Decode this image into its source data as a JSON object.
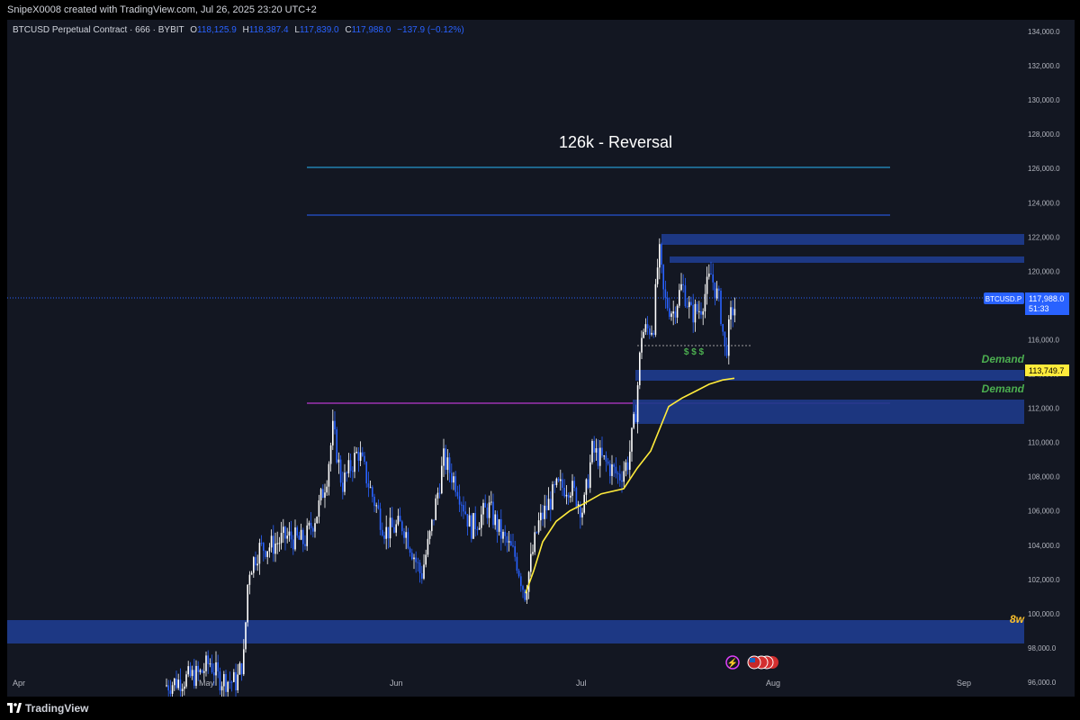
{
  "header": {
    "attribution": "SnipeX0008 created with TradingView.com, Jul 26, 2025 23:20 UTC+2"
  },
  "symbol": {
    "name": "BTCUSD Perpetual Contract · 666 · BYBIT",
    "open_label": "O",
    "open": "118,125.9",
    "high_label": "H",
    "high": "118,387.4",
    "low_label": "L",
    "low": "117,839.0",
    "close_label": "C",
    "close": "117,988.0",
    "change": "−137.9 (−0.12%)"
  },
  "annotations": {
    "title": "126k - Reversal",
    "demand_1": "Demand",
    "demand_2": "Demand",
    "liquidity": "$ $ $",
    "weekly": "8w"
  },
  "price_axis": {
    "ticks": [
      "134,000.0",
      "132,000.0",
      "130,000.0",
      "128,000.0",
      "126,000.0",
      "124,000.0",
      "122,000.0",
      "120,000.0",
      "118,000.0",
      "116,000.0",
      "114,000.0",
      "112,000.0",
      "110,000.0",
      "108,000.0",
      "106,000.0",
      "104,000.0",
      "102,000.0",
      "100,000.0",
      "98,000.0",
      "96,000.0"
    ],
    "tick_values": [
      134000,
      132000,
      130000,
      128000,
      126000,
      124000,
      122000,
      120000,
      118000,
      116000,
      114000,
      112000,
      110000,
      108000,
      106000,
      104000,
      102000,
      100000,
      98000,
      96000
    ],
    "last_price_ticker": "BTCUSD.P",
    "last_price": "117,988.0",
    "countdown": "51:33",
    "ma_value_label": "113,749.7"
  },
  "time_axis": {
    "labels": [
      "Apr",
      "May",
      "Jun",
      "Jul",
      "Aug",
      "Sep"
    ]
  },
  "footer": {
    "brand": "TradingView"
  },
  "colors": {
    "background": "#131722",
    "up": "#ffffff",
    "down": "#2962ff",
    "ma": "#ffeb3b",
    "zone": "#1e3a8a",
    "demand_text": "#4caf50",
    "weekly_text": "#fbc02d",
    "accent": "#2962ff",
    "magenta": "#e040fb"
  },
  "chart_data": {
    "type": "candlestick",
    "y_range": [
      95000,
      135000
    ],
    "levels": [
      {
        "name": "126k target",
        "price": 126000,
        "color": "#29b6f6"
      },
      {
        "name": "range high",
        "price": 123100,
        "color": "#2962ff"
      },
      {
        "name": "breakout level",
        "price": 111700,
        "color": "#e040fb"
      },
      {
        "name": "liquidity low",
        "price": 115100,
        "color": "#9e9e9e"
      },
      {
        "name": "last price",
        "price": 117988,
        "color": "#2962ff"
      }
    ],
    "zones": [
      {
        "name": "supply-1",
        "from": 121300,
        "to": 121900
      },
      {
        "name": "supply-2",
        "from": 120200,
        "to": 120500
      },
      {
        "name": "demand-1",
        "from": 113000,
        "to": 113800
      },
      {
        "name": "demand-2",
        "from": 110500,
        "to": 111900
      },
      {
        "name": "weekly",
        "from": 97500,
        "to": 98500
      }
    ],
    "moving_average": {
      "last_value": 113749.7
    }
  }
}
